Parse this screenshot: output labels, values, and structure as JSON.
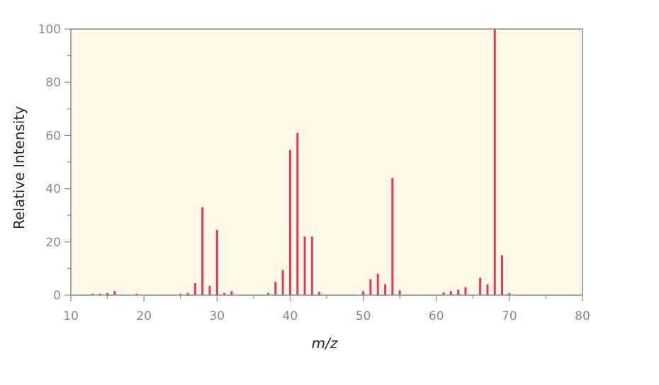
{
  "chart_data": {
    "type": "bar",
    "title": "",
    "xlabel": "m/z",
    "ylabel": "Relative Intensity",
    "xlim": [
      10,
      80
    ],
    "ylim": [
      0,
      100
    ],
    "x_ticks": [
      "10",
      "20",
      "30",
      "40",
      "50",
      "60",
      "70",
      "80"
    ],
    "y_ticks": [
      "0",
      "20",
      "40",
      "60",
      "80",
      "100"
    ],
    "grid": false,
    "legend": null,
    "colors": {
      "plot_background": "#fdf9e6",
      "bar": "#e8365a",
      "axis": "#8a8a8a"
    },
    "series": [
      {
        "x": [
          13,
          14,
          15,
          16,
          19,
          25,
          26,
          27,
          28,
          29,
          30,
          31,
          32,
          37,
          38,
          39,
          40,
          41,
          42,
          43,
          44,
          50,
          51,
          52,
          53,
          54,
          55,
          61,
          62,
          63,
          64,
          66,
          67,
          68,
          69,
          70
        ],
        "values": [
          0.5,
          0.5,
          0.8,
          1.5,
          0.5,
          0.5,
          0.8,
          4.5,
          33,
          3.5,
          24.5,
          0.8,
          1.5,
          0.8,
          5,
          9.5,
          54.5,
          61,
          22,
          22,
          1.2,
          1.5,
          6,
          8,
          4,
          44,
          1.8,
          1,
          1.5,
          2,
          3,
          6.5,
          4,
          100,
          15,
          0.8
        ]
      }
    ]
  }
}
